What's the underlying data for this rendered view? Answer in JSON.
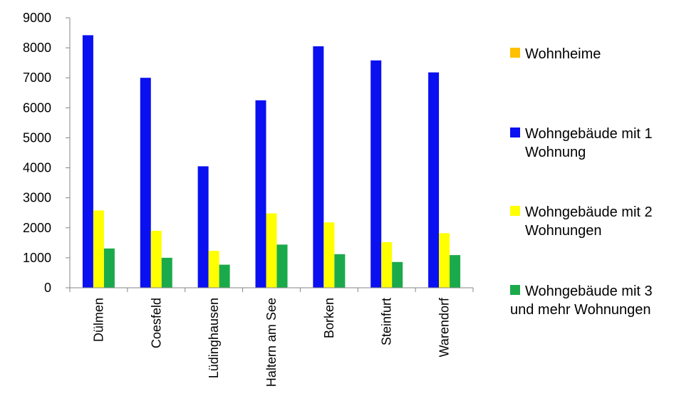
{
  "chart_data": {
    "type": "bar",
    "categories": [
      "Dülmen",
      "Coesfeld",
      "Lüdinghausen",
      "Haltern am See",
      "Borken",
      "Steinfurt",
      "Warendorf"
    ],
    "series": [
      {
        "name": "Wohngebäude mit 1 Wohnung",
        "legend_lines": [
          "Wohngebäude mit 1",
          "Wohnung"
        ],
        "color": "#0A10F0",
        "values": [
          8420,
          7000,
          4050,
          6250,
          8050,
          7580,
          7180
        ]
      },
      {
        "name": "Wohngebäude mit 2 Wohnungen",
        "legend_lines": [
          "Wohngebäude mit 2",
          "Wohnungen"
        ],
        "color": "#FFFF00",
        "values": [
          2580,
          1900,
          1230,
          2480,
          2180,
          1520,
          1820
        ]
      },
      {
        "name": "Wohngebäude mit 3 und mehr Wohnungen",
        "legend_lines": [
          "Wohngebäude mit 3",
          "und mehr Wohnungen"
        ],
        "color": "#1BAA4B",
        "values": [
          1310,
          1000,
          770,
          1440,
          1120,
          860,
          1090
        ]
      },
      {
        "name": "Wohnheime",
        "legend_lines": [
          "Wohnheime"
        ],
        "color": "#FFC000",
        "values": [
          0,
          0,
          0,
          0,
          0,
          0,
          0
        ]
      }
    ],
    "legend_order": [
      3,
      0,
      1,
      2
    ],
    "y_ticks": [
      0,
      1000,
      2000,
      3000,
      4000,
      5000,
      6000,
      7000,
      8000,
      9000
    ],
    "ylim": [
      0,
      9000
    ],
    "title": "",
    "xlabel": "",
    "ylabel": "",
    "grid": false,
    "legend_position": "right"
  }
}
